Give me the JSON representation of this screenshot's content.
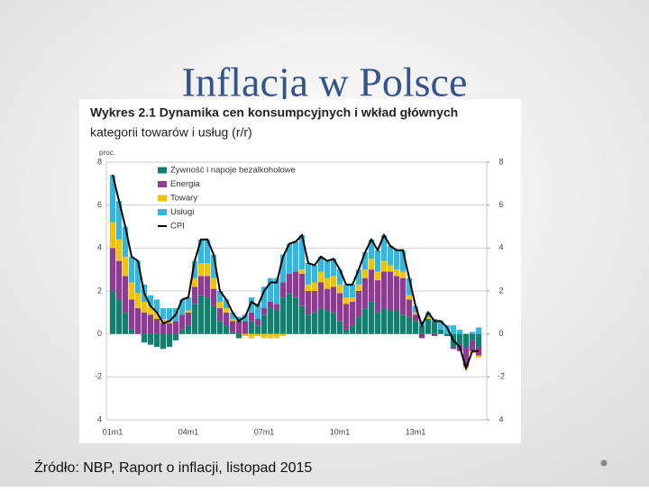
{
  "slide_title": "Inflacja w Polsce",
  "source": "Źródło: NBP, Raport o inflacji, listopad 2015",
  "chart_data": {
    "type": "bar",
    "stacked": true,
    "title": "Wykres 2.1 Dynamika cen konsumpcyjnych i wkład głównych",
    "subtitle": "kategorii towarów i usług (r/r)",
    "ylabel": "proc.",
    "legend": "upper left",
    "grid": true,
    "categories": [
      "01m1",
      null,
      null,
      null,
      null,
      null,
      null,
      null,
      null,
      null,
      null,
      null,
      "04m1",
      null,
      null,
      null,
      null,
      null,
      null,
      null,
      null,
      null,
      null,
      null,
      "07m1",
      null,
      null,
      null,
      null,
      null,
      null,
      null,
      null,
      null,
      null,
      null,
      "10m1",
      null,
      null,
      null,
      null,
      null,
      null,
      null,
      null,
      null,
      null,
      null,
      "13m1",
      null,
      null,
      null,
      null,
      null,
      null,
      null,
      null,
      null,
      null
    ],
    "ylim": [
      -4,
      8
    ],
    "yticks": [
      {
        "value": -4,
        "label": "4"
      },
      -2,
      0,
      2,
      4,
      6,
      8
    ],
    "y2lim": [
      -4,
      8
    ],
    "y2ticks": [
      {
        "value": -4,
        "label": "4"
      },
      -2,
      0,
      2,
      4,
      6,
      8
    ],
    "series": [
      {
        "name": "Żywność i napoje bezalkoholowe",
        "color": "#13806f",
        "values": [
          2.0,
          1.6,
          1.0,
          0.2,
          0.0,
          -0.4,
          -0.5,
          -0.6,
          -0.7,
          -0.6,
          -0.3,
          0.2,
          0.4,
          1.4,
          1.8,
          1.7,
          1.3,
          0.6,
          0.4,
          0.1,
          -0.2,
          0.0,
          0.6,
          0.4,
          0.9,
          1.2,
          1.1,
          1.7,
          1.9,
          1.7,
          1.3,
          0.9,
          1.0,
          1.2,
          1.1,
          1.0,
          0.6,
          0.2,
          0.4,
          0.8,
          1.2,
          1.5,
          1.0,
          1.2,
          1.1,
          1.1,
          0.9,
          0.8,
          0.6,
          0.4,
          0.7,
          0.6,
          0.2,
          -0.1,
          -0.6,
          -0.5,
          -0.6,
          -0.3,
          -0.6
        ]
      },
      {
        "name": "Energia",
        "color": "#8e3c92",
        "values": [
          2.0,
          1.8,
          1.7,
          1.4,
          1.2,
          1.0,
          0.9,
          0.7,
          0.5,
          0.5,
          0.6,
          0.7,
          0.6,
          0.8,
          0.9,
          1.0,
          0.8,
          0.6,
          0.6,
          0.5,
          0.6,
          0.6,
          0.4,
          0.3,
          0.3,
          0.3,
          0.3,
          0.7,
          0.9,
          1.2,
          1.5,
          1.1,
          1.0,
          1.2,
          1.0,
          1.2,
          1.3,
          1.2,
          1.1,
          1.2,
          1.4,
          1.5,
          1.5,
          1.7,
          1.8,
          1.6,
          1.7,
          0.8,
          0.3,
          -0.2,
          0.0,
          -0.1,
          0.0,
          0.0,
          -0.1,
          -0.3,
          -0.9,
          -0.5,
          -0.4
        ]
      },
      {
        "name": "Towary",
        "color": "#f2c300",
        "values": [
          1.2,
          1.0,
          0.9,
          0.8,
          0.7,
          0.5,
          0.4,
          0.3,
          0.2,
          0.1,
          0.0,
          0.0,
          0.1,
          0.4,
          0.6,
          0.6,
          0.5,
          0.3,
          0.2,
          0.1,
          0.0,
          -0.1,
          -0.2,
          -0.1,
          -0.2,
          -0.2,
          -0.2,
          -0.1,
          0.0,
          0.0,
          0.2,
          0.3,
          0.4,
          0.5,
          0.5,
          0.5,
          0.4,
          0.3,
          0.2,
          0.3,
          0.4,
          0.5,
          0.4,
          0.5,
          0.3,
          0.3,
          0.3,
          0.2,
          0.1,
          0.0,
          0.1,
          0.0,
          0.0,
          0.0,
          0.0,
          0.0,
          -0.1,
          -0.1,
          -0.1
        ]
      },
      {
        "name": "Usługi",
        "color": "#35b6dc",
        "values": [
          2.2,
          1.8,
          1.4,
          1.2,
          1.5,
          0.8,
          0.5,
          0.6,
          0.5,
          0.6,
          0.6,
          0.7,
          0.6,
          0.8,
          1.1,
          1.1,
          1.1,
          0.5,
          0.4,
          0.3,
          0.2,
          0.3,
          0.7,
          0.7,
          1.0,
          1.1,
          1.2,
          1.3,
          1.4,
          1.4,
          1.6,
          1.0,
          0.8,
          0.7,
          0.8,
          0.8,
          0.7,
          0.6,
          0.6,
          0.7,
          0.8,
          0.9,
          1.0,
          1.2,
          0.9,
          0.9,
          1.0,
          0.8,
          0.3,
          0.2,
          0.2,
          0.1,
          0.4,
          0.4,
          0.4,
          0.2,
          0.0,
          0.1,
          0.3
        ]
      },
      {
        "name": "CPI",
        "color": "#000000",
        "type": "line",
        "values": [
          7.4,
          6.2,
          5.0,
          3.6,
          3.4,
          1.9,
          1.3,
          1.0,
          0.5,
          0.6,
          0.9,
          1.6,
          1.7,
          3.4,
          4.4,
          4.4,
          3.7,
          2.0,
          1.6,
          1.0,
          0.6,
          0.8,
          1.5,
          1.3,
          2.0,
          2.4,
          2.4,
          3.6,
          4.2,
          4.3,
          4.6,
          3.3,
          3.2,
          3.6,
          3.4,
          3.5,
          3.0,
          2.3,
          2.3,
          3.0,
          3.8,
          4.4,
          3.9,
          4.6,
          4.1,
          3.9,
          3.9,
          2.6,
          1.3,
          0.4,
          1.0,
          0.6,
          0.6,
          0.3,
          -0.3,
          -0.6,
          -1.6,
          -0.8,
          -0.8
        ]
      }
    ]
  }
}
